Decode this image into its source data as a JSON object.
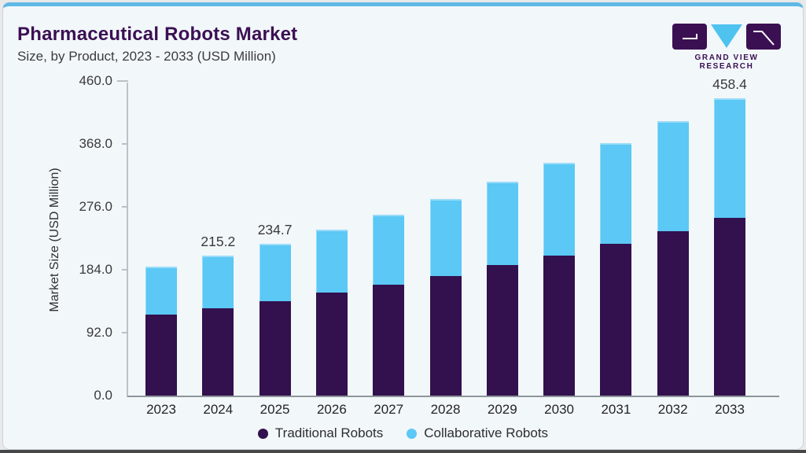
{
  "header": {
    "title": "Pharmaceutical Robots Market",
    "subtitle": "Size, by Product, 2023 - 2033 (USD Million)"
  },
  "logo": {
    "text": "GRAND VIEW RESEARCH",
    "purple": "#3b1053",
    "blue": "#4fc3f0"
  },
  "chart_data": {
    "type": "bar",
    "stacked": true,
    "title": "Pharmaceutical Robots Market",
    "subtitle": "Size, by Product, 2023 - 2033 (USD Million)",
    "xlabel": "",
    "ylabel": "Market Size (USD Million)",
    "ylim": [
      0,
      460
    ],
    "grid": false,
    "legend_position": "bottom",
    "ytick_values": [
      0,
      92,
      184,
      276,
      368,
      460
    ],
    "ytick_labels": [
      "0.0",
      "92.0",
      "184.0",
      "276.0",
      "368.0",
      "460.0"
    ],
    "categories": [
      "2023",
      "2024",
      "2025",
      "2026",
      "2027",
      "2028",
      "2029",
      "2030",
      "2031",
      "2032",
      "2033"
    ],
    "series": [
      {
        "name": "Traditional Robots",
        "color": "#33104e",
        "values": [
          124.5,
          133.9,
          146.0,
          158.2,
          170.4,
          184.6,
          200.8,
          215.8,
          234.0,
          253.1,
          273.8
        ]
      },
      {
        "name": "Collaborative Robots",
        "color": "#5bc8f5",
        "values": [
          74.2,
          81.3,
          88.7,
          96.5,
          108.3,
          118.8,
          128.6,
          142.9,
          154.6,
          170.1,
          184.6
        ]
      }
    ],
    "totals": [
      198.7,
      215.2,
      234.7,
      254.7,
      278.7,
      303.4,
      329.4,
      358.7,
      388.6,
      423.2,
      458.4
    ],
    "data_labels": {
      "2024": "215.2",
      "2025": "234.7",
      "2033": "458.4"
    }
  }
}
